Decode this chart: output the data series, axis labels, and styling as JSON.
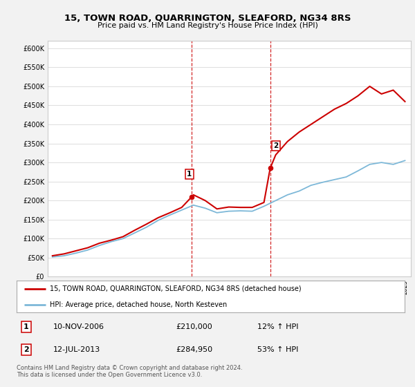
{
  "title": "15, TOWN ROAD, QUARRINGTON, SLEAFORD, NG34 8RS",
  "subtitle": "Price paid vs. HM Land Registry's House Price Index (HPI)",
  "legend_line1": "15, TOWN ROAD, QUARRINGTON, SLEAFORD, NG34 8RS (detached house)",
  "legend_line2": "HPI: Average price, detached house, North Kesteven",
  "annotation1_date": "10-NOV-2006",
  "annotation1_price": "£210,000",
  "annotation1_hpi": "12% ↑ HPI",
  "annotation2_date": "12-JUL-2013",
  "annotation2_price": "£284,950",
  "annotation2_hpi": "53% ↑ HPI",
  "footnote": "Contains HM Land Registry data © Crown copyright and database right 2024.\nThis data is licensed under the Open Government Licence v3.0.",
  "hpi_color": "#7db8d8",
  "sale_color": "#cc0000",
  "vline_color": "#cc0000",
  "background_color": "#f2f2f2",
  "plot_bg_color": "#ffffff",
  "ylim": [
    0,
    620000
  ],
  "yticks": [
    0,
    50000,
    100000,
    150000,
    200000,
    250000,
    300000,
    350000,
    400000,
    450000,
    500000,
    550000,
    600000
  ],
  "sale1_year": 2006.86,
  "sale1_price": 210000,
  "sale2_year": 2013.53,
  "sale2_price": 284950,
  "hpi_years": [
    1995,
    1996,
    1997,
    1998,
    1999,
    2000,
    2001,
    2002,
    2003,
    2004,
    2005,
    2006,
    2007,
    2008,
    2009,
    2010,
    2011,
    2012,
    2013,
    2014,
    2015,
    2016,
    2017,
    2018,
    2019,
    2020,
    2021,
    2022,
    2023,
    2024,
    2025
  ],
  "hpi_values": [
    52000,
    55000,
    62000,
    70000,
    82000,
    92000,
    100000,
    115000,
    130000,
    148000,
    162000,
    175000,
    188000,
    180000,
    168000,
    172000,
    173000,
    172000,
    185000,
    200000,
    215000,
    225000,
    240000,
    248000,
    255000,
    262000,
    278000,
    295000,
    300000,
    295000,
    305000
  ],
  "red_years": [
    1995,
    1996,
    1997,
    1998,
    1999,
    2000,
    2001,
    2002,
    2003,
    2004,
    2005,
    2006,
    2006.86,
    2007,
    2008,
    2009,
    2010,
    2011,
    2012,
    2013,
    2013.53,
    2014,
    2015,
    2016,
    2017,
    2018,
    2019,
    2020,
    2021,
    2022,
    2023,
    2024,
    2025
  ],
  "red_values": [
    55000,
    60000,
    68000,
    76000,
    88000,
    96000,
    105000,
    122000,
    138000,
    155000,
    168000,
    182000,
    210000,
    215000,
    200000,
    178000,
    183000,
    182000,
    182000,
    195000,
    284950,
    320000,
    355000,
    380000,
    400000,
    420000,
    440000,
    455000,
    475000,
    500000,
    480000,
    490000,
    460000
  ]
}
